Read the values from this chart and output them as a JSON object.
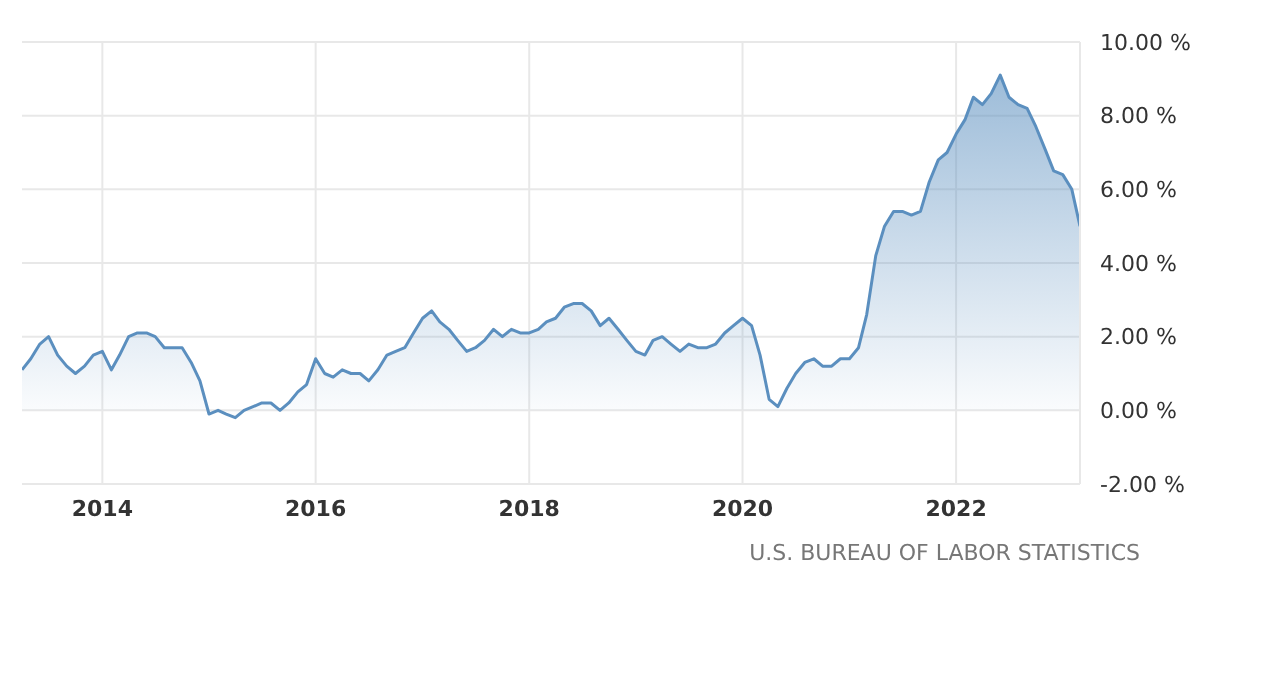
{
  "chart_data": {
    "type": "area",
    "x": [
      "2013-04",
      "2013-05",
      "2013-06",
      "2013-07",
      "2013-08",
      "2013-09",
      "2013-10",
      "2013-11",
      "2013-12",
      "2014-01",
      "2014-02",
      "2014-03",
      "2014-04",
      "2014-05",
      "2014-06",
      "2014-07",
      "2014-08",
      "2014-09",
      "2014-10",
      "2014-11",
      "2014-12",
      "2015-01",
      "2015-02",
      "2015-03",
      "2015-04",
      "2015-05",
      "2015-06",
      "2015-07",
      "2015-08",
      "2015-09",
      "2015-10",
      "2015-11",
      "2015-12",
      "2016-01",
      "2016-02",
      "2016-03",
      "2016-04",
      "2016-05",
      "2016-06",
      "2016-07",
      "2016-08",
      "2016-09",
      "2016-10",
      "2016-11",
      "2016-12",
      "2017-01",
      "2017-02",
      "2017-03",
      "2017-04",
      "2017-05",
      "2017-06",
      "2017-07",
      "2017-08",
      "2017-09",
      "2017-10",
      "2017-11",
      "2017-12",
      "2018-01",
      "2018-02",
      "2018-03",
      "2018-04",
      "2018-05",
      "2018-06",
      "2018-07",
      "2018-08",
      "2018-09",
      "2018-10",
      "2018-11",
      "2018-12",
      "2019-01",
      "2019-02",
      "2019-03",
      "2019-04",
      "2019-05",
      "2019-06",
      "2019-07",
      "2019-08",
      "2019-09",
      "2019-10",
      "2019-11",
      "2019-12",
      "2020-01",
      "2020-02",
      "2020-03",
      "2020-04",
      "2020-05",
      "2020-06",
      "2020-07",
      "2020-08",
      "2020-09",
      "2020-10",
      "2020-11",
      "2020-12",
      "2021-01",
      "2021-02",
      "2021-03",
      "2021-04",
      "2021-05",
      "2021-06",
      "2021-07",
      "2021-08",
      "2021-09",
      "2021-10",
      "2021-11",
      "2021-12",
      "2022-01",
      "2022-02",
      "2022-03",
      "2022-04",
      "2022-05",
      "2022-06",
      "2022-07",
      "2022-08",
      "2022-09",
      "2022-10",
      "2022-11",
      "2022-12",
      "2023-01",
      "2023-02",
      "2023-03"
    ],
    "series": [
      {
        "color": "#5b8fbf",
        "values": [
          1.1,
          1.4,
          1.8,
          2.0,
          1.5,
          1.2,
          1.0,
          1.2,
          1.5,
          1.6,
          1.1,
          1.5,
          2.0,
          2.1,
          2.1,
          2.0,
          1.7,
          1.7,
          1.7,
          1.3,
          0.8,
          -0.1,
          0.0,
          -0.1,
          -0.2,
          0.0,
          0.1,
          0.2,
          0.2,
          0.0,
          0.2,
          0.5,
          0.7,
          1.4,
          1.0,
          0.9,
          1.1,
          1.0,
          1.0,
          0.8,
          1.1,
          1.5,
          1.6,
          1.7,
          2.1,
          2.5,
          2.7,
          2.4,
          2.2,
          1.9,
          1.6,
          1.7,
          1.9,
          2.2,
          2.0,
          2.2,
          2.1,
          2.1,
          2.2,
          2.4,
          2.5,
          2.8,
          2.9,
          2.9,
          2.7,
          2.3,
          2.5,
          2.2,
          1.9,
          1.6,
          1.5,
          1.9,
          2.0,
          1.8,
          1.6,
          1.8,
          1.7,
          1.7,
          1.8,
          2.1,
          2.3,
          2.5,
          2.3,
          1.5,
          0.3,
          0.1,
          0.6,
          1.0,
          1.3,
          1.4,
          1.2,
          1.2,
          1.4,
          1.4,
          1.7,
          2.6,
          4.2,
          5.0,
          5.4,
          5.4,
          5.3,
          5.4,
          6.2,
          6.8,
          7.0,
          7.5,
          7.9,
          8.5,
          8.3,
          8.6,
          9.1,
          8.5,
          8.3,
          8.2,
          7.7,
          7.1,
          6.5,
          6.4,
          6.0,
          5.0
        ]
      }
    ],
    "xlim": [
      "2013-04",
      "2023-03"
    ],
    "xticks": [
      "2014",
      "2016",
      "2018",
      "2020",
      "2022"
    ],
    "ylim": [
      -2,
      10
    ],
    "yticks": [
      {
        "value": -2,
        "label": "-2.00 %"
      },
      {
        "value": 0,
        "label": "0.00 %"
      },
      {
        "value": 2,
        "label": "2.00 %"
      },
      {
        "value": 4,
        "label": "4.00 %"
      },
      {
        "value": 6,
        "label": "6.00 %"
      },
      {
        "value": 8,
        "label": "8.00 %"
      },
      {
        "value": 10,
        "label": "10.00 %"
      }
    ],
    "grid": true,
    "marker": "none",
    "line_style": "solid",
    "annotations": [
      "U.S. BUREAU OF LABOR STATISTICS"
    ]
  }
}
